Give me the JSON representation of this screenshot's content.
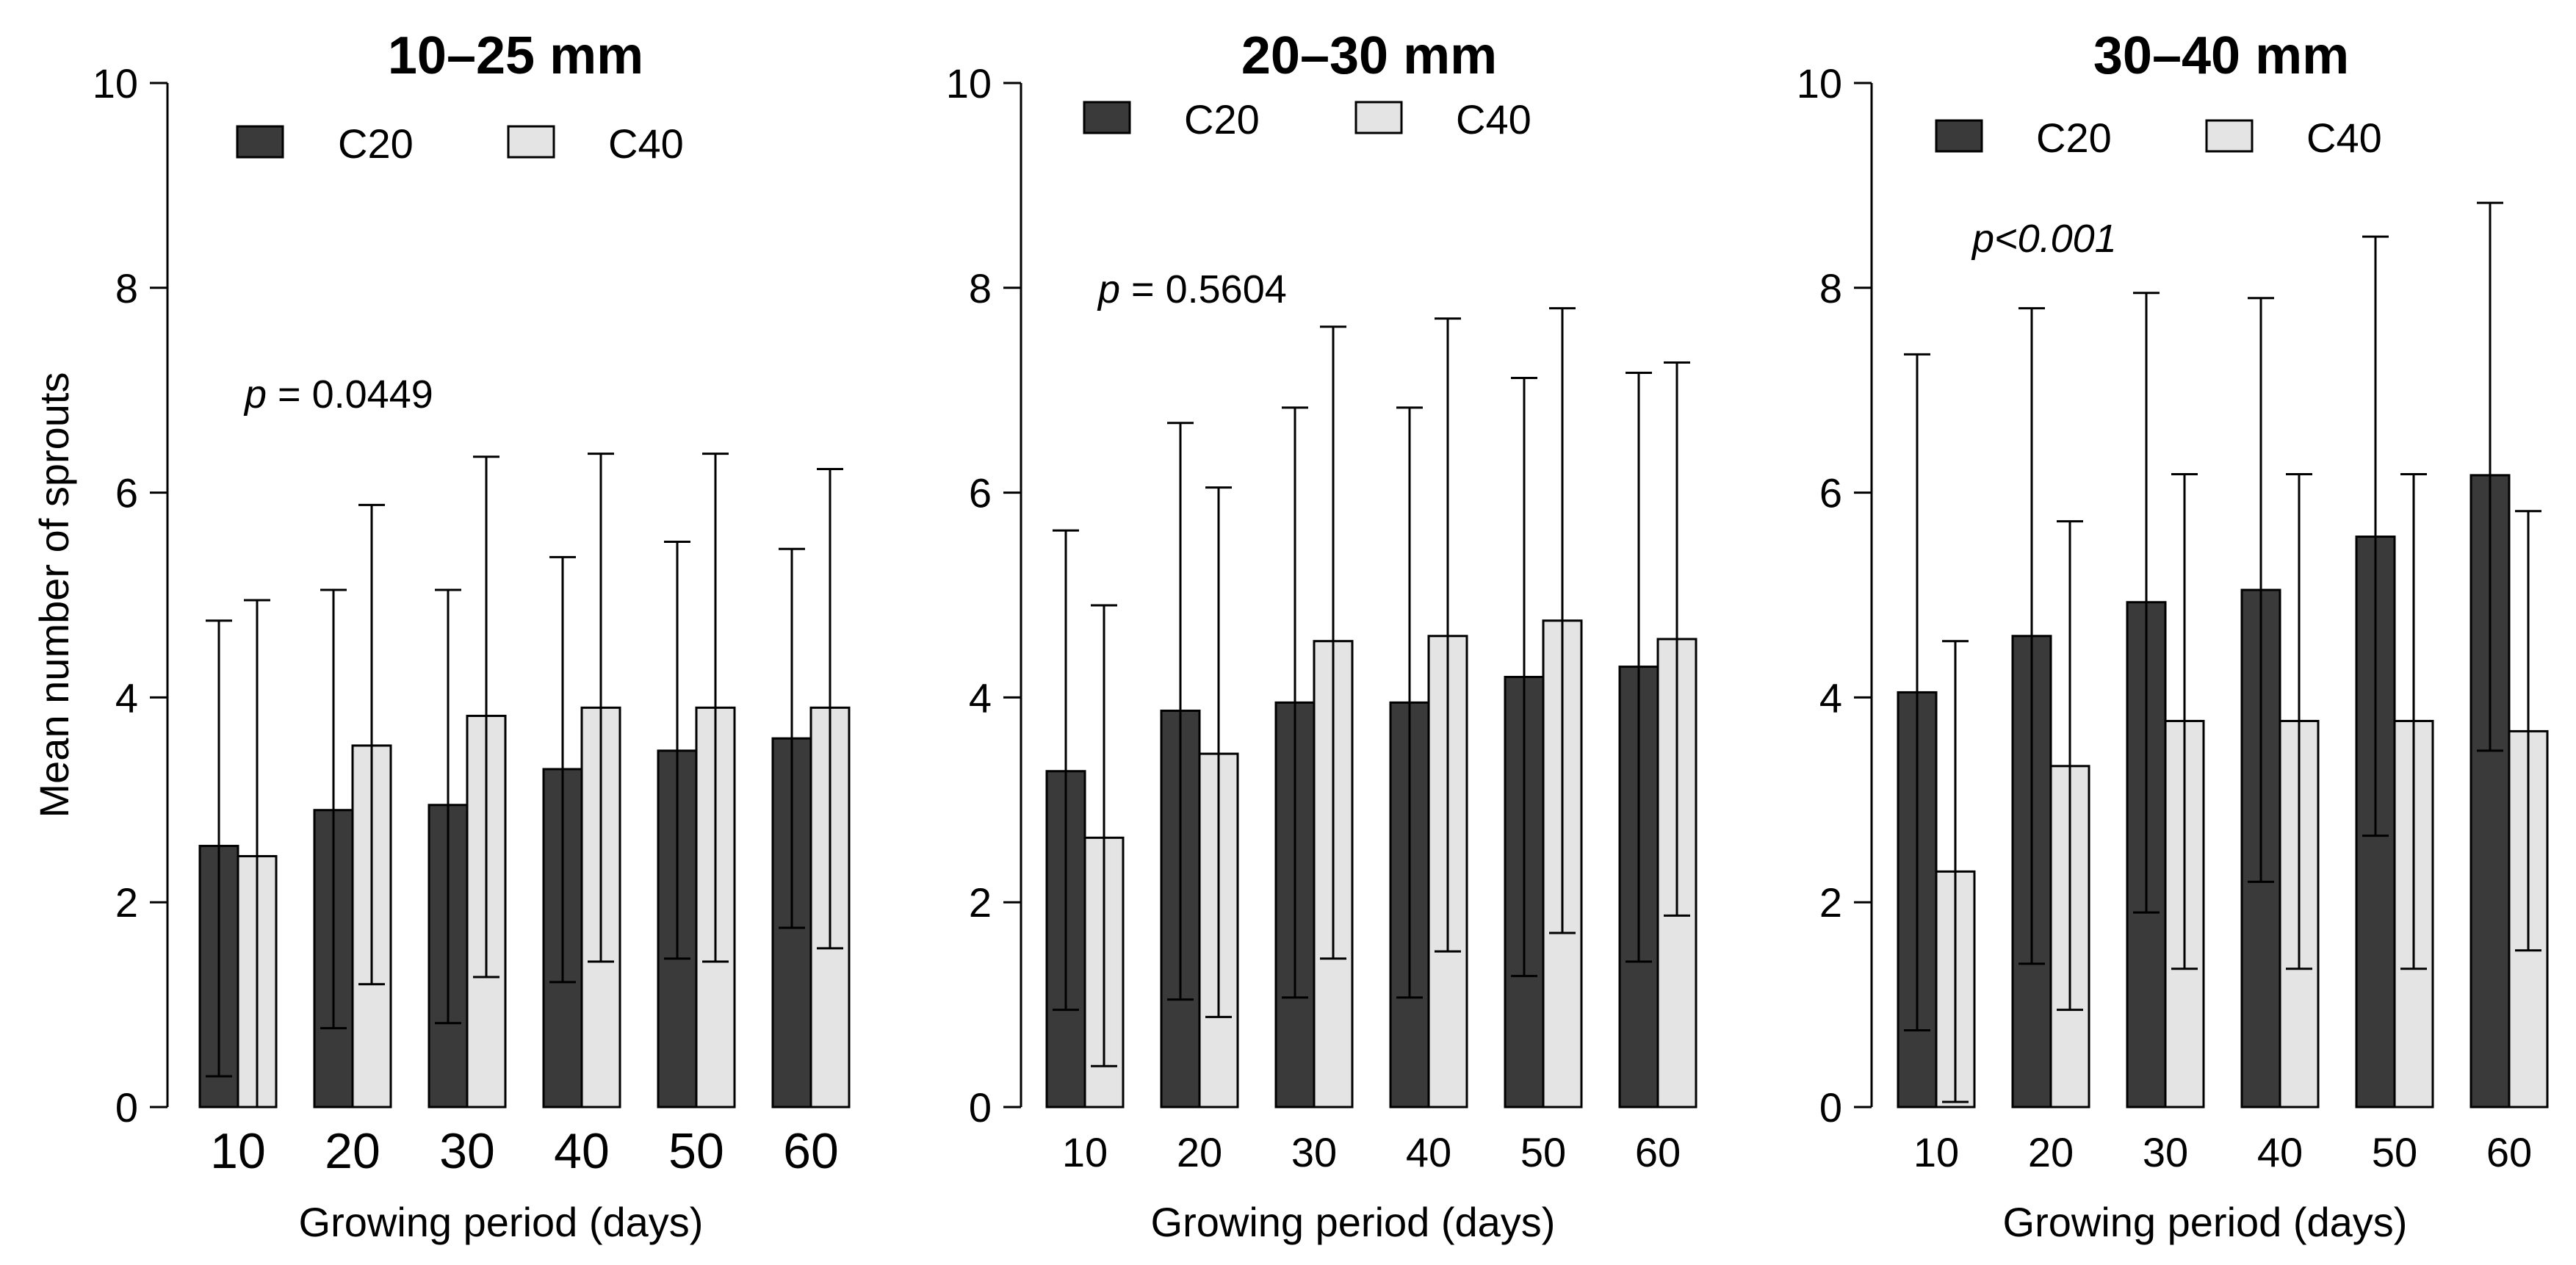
{
  "colors": {
    "c20": "#3a3a3a",
    "c40": "#e4e4e4",
    "stroke": "#000000"
  },
  "chart_data": [
    {
      "type": "bar",
      "title": "10–25 mm",
      "xlabel": "Growing period (days)",
      "ylabel": "Mean number of sprouts",
      "ylim": [
        0,
        10
      ],
      "yticks": [
        "0",
        "2",
        "4",
        "6",
        "8",
        "10"
      ],
      "categories": [
        "10",
        "20",
        "30",
        "40",
        "50",
        "60"
      ],
      "legend": [
        "C20",
        "C40"
      ],
      "series": [
        {
          "name": "C20",
          "values": [
            2.55,
            2.9,
            2.95,
            3.3,
            3.48,
            3.6
          ],
          "err_low": [
            0.3,
            0.77,
            0.82,
            1.22,
            1.45,
            1.75
          ],
          "err_high": [
            4.75,
            5.05,
            5.05,
            5.37,
            5.52,
            5.45
          ]
        },
        {
          "name": "C40",
          "values": [
            2.45,
            3.53,
            3.82,
            3.9,
            3.9,
            3.9
          ],
          "err_low": [
            0.0,
            1.2,
            1.27,
            1.42,
            1.42,
            1.55
          ],
          "err_high": [
            4.95,
            5.88,
            6.35,
            6.38,
            6.38,
            6.23
          ]
        }
      ],
      "annotation": {
        "prefix": "p",
        "rest": " = 0.0449",
        "italic_all": false
      }
    },
    {
      "type": "bar",
      "title": "20–30 mm",
      "xlabel": "Growing period (days)",
      "ylabel": "",
      "ylim": [
        0,
        10
      ],
      "yticks": [
        "0",
        "2",
        "4",
        "6",
        "8",
        "10"
      ],
      "categories": [
        "10",
        "20",
        "30",
        "40",
        "50",
        "60"
      ],
      "legend": [
        "C20",
        "C40"
      ],
      "series": [
        {
          "name": "C20",
          "values": [
            3.28,
            3.87,
            3.95,
            3.95,
            4.2,
            4.3
          ],
          "err_low": [
            0.95,
            1.05,
            1.07,
            1.07,
            1.28,
            1.42
          ],
          "err_high": [
            5.63,
            6.68,
            6.83,
            6.83,
            7.12,
            7.17
          ]
        },
        {
          "name": "C40",
          "values": [
            2.63,
            3.45,
            4.55,
            4.6,
            4.75,
            4.57
          ],
          "err_low": [
            0.4,
            0.88,
            1.45,
            1.52,
            1.7,
            1.87
          ],
          "err_high": [
            4.9,
            6.05,
            7.62,
            7.7,
            7.8,
            7.27
          ]
        }
      ],
      "annotation": {
        "prefix": "p",
        "rest": " = 0.5604",
        "italic_all": false
      }
    },
    {
      "type": "bar",
      "title": "30–40 mm",
      "xlabel": "Growing period (days)",
      "ylabel": "",
      "ylim": [
        0,
        10
      ],
      "yticks": [
        "0",
        "2",
        "4",
        "6",
        "8",
        "10"
      ],
      "categories": [
        "10",
        "20",
        "30",
        "40",
        "50",
        "60"
      ],
      "legend": [
        "C20",
        "C40"
      ],
      "series": [
        {
          "name": "C20",
          "values": [
            4.05,
            4.6,
            4.93,
            5.05,
            5.57,
            6.17
          ],
          "err_low": [
            0.75,
            1.4,
            1.9,
            2.2,
            2.65,
            3.48
          ],
          "err_high": [
            7.35,
            7.8,
            7.95,
            7.9,
            8.5,
            8.83
          ]
        },
        {
          "name": "C40",
          "values": [
            2.3,
            3.33,
            3.77,
            3.77,
            3.77,
            3.67
          ],
          "err_low": [
            0.05,
            0.95,
            1.35,
            1.35,
            1.35,
            1.53
          ],
          "err_high": [
            4.55,
            5.72,
            6.18,
            6.18,
            6.18,
            5.82
          ]
        }
      ],
      "annotation": {
        "prefix": "p<0.001",
        "rest": "",
        "italic_all": true
      }
    }
  ]
}
